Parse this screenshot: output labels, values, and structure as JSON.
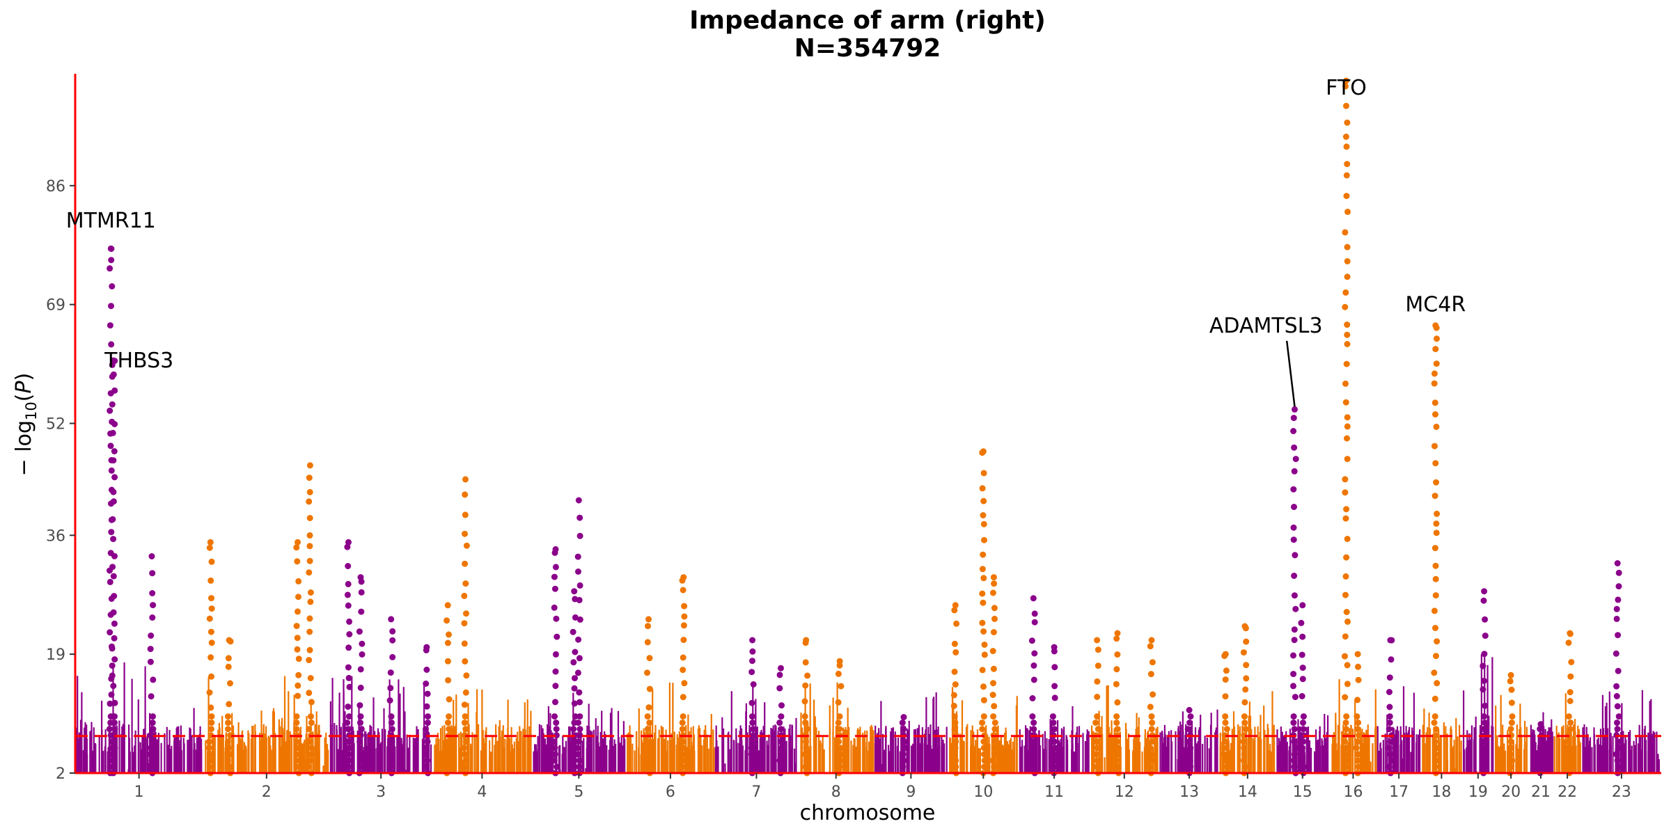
{
  "chart_data": {
    "type": "scatter",
    "subtype": "manhattan",
    "title": "Impedance of arm (right)",
    "subtitle": "N=354792",
    "xlabel": "chromosome",
    "ylabel": "− log10(P)",
    "ylim": [
      2,
      102
    ],
    "yticks": [
      2,
      19,
      36,
      52,
      69,
      86
    ],
    "threshold": 7.3,
    "threshold_color": "#ff0000",
    "axis_color": "#ff0000",
    "colors": [
      "#8b008b",
      "#ee7600"
    ],
    "chromosomes": [
      {
        "label": "1",
        "len": 249,
        "base": 16,
        "peaks": [
          [
            0.3,
            61,
            "top"
          ],
          [
            0.28,
            77,
            "top"
          ],
          [
            0.6,
            33,
            "top"
          ]
        ]
      },
      {
        "label": "2",
        "len": 243,
        "base": 14,
        "peaks": [
          [
            0.05,
            35,
            "top"
          ],
          [
            0.2,
            21,
            "top"
          ],
          [
            0.85,
            46,
            "top"
          ],
          [
            0.75,
            35,
            "top"
          ]
        ]
      },
      {
        "label": "3",
        "len": 198,
        "base": 14,
        "peaks": [
          [
            0.18,
            35,
            "top"
          ],
          [
            0.3,
            30,
            "top"
          ],
          [
            0.6,
            24,
            "top"
          ],
          [
            0.95,
            20,
            "top"
          ]
        ]
      },
      {
        "label": "4",
        "len": 191,
        "base": 12,
        "peaks": [
          [
            0.33,
            44,
            "top"
          ],
          [
            0.15,
            26,
            "top"
          ]
        ]
      },
      {
        "label": "5",
        "len": 181,
        "base": 12,
        "peaks": [
          [
            0.25,
            34,
            "top"
          ],
          [
            0.5,
            41,
            "top"
          ],
          [
            0.45,
            28,
            "top"
          ]
        ]
      },
      {
        "label": "6",
        "len": 171,
        "base": 14,
        "peaks": [
          [
            0.25,
            24,
            "top"
          ],
          [
            0.65,
            30,
            "top"
          ]
        ]
      },
      {
        "label": "7",
        "len": 159,
        "base": 13,
        "peaks": [
          [
            0.45,
            21,
            "top"
          ],
          [
            0.8,
            17,
            "top"
          ]
        ]
      },
      {
        "label": "8",
        "len": 146,
        "base": 13,
        "peaks": [
          [
            0.1,
            21,
            "top"
          ],
          [
            0.55,
            18,
            "top"
          ]
        ]
      },
      {
        "label": "9",
        "len": 141,
        "base": 12,
        "peaks": [
          [
            0.4,
            10,
            "top"
          ]
        ]
      },
      {
        "label": "10",
        "len": 136,
        "base": 13,
        "peaks": [
          [
            0.1,
            26,
            "top"
          ],
          [
            0.5,
            48,
            "top"
          ],
          [
            0.65,
            30,
            "top"
          ]
        ]
      },
      {
        "label": "11",
        "len": 135,
        "base": 14,
        "peaks": [
          [
            0.2,
            27,
            "top"
          ],
          [
            0.5,
            20,
            "top"
          ]
        ]
      },
      {
        "label": "12",
        "len": 133,
        "base": 13,
        "peaks": [
          [
            0.1,
            21,
            "top"
          ],
          [
            0.4,
            22,
            "top"
          ],
          [
            0.9,
            21,
            "top"
          ]
        ]
      },
      {
        "label": "13",
        "len": 115,
        "base": 10,
        "peaks": [
          [
            0.5,
            11,
            "top"
          ]
        ]
      },
      {
        "label": "14",
        "len": 107,
        "base": 12,
        "peaks": [
          [
            0.1,
            19,
            "top"
          ],
          [
            0.45,
            23,
            "top"
          ]
        ]
      },
      {
        "label": "15",
        "len": 102,
        "base": 12,
        "peaks": [
          [
            0.35,
            54,
            "ADAMTSL3"
          ],
          [
            0.5,
            26,
            "top"
          ]
        ]
      },
      {
        "label": "16",
        "len": 90,
        "base": 14,
        "peaks": [
          [
            0.35,
            101,
            "FTO"
          ],
          [
            0.6,
            19,
            "top"
          ]
        ]
      },
      {
        "label": "17",
        "len": 83,
        "base": 14,
        "peaks": [
          [
            0.3,
            21,
            "top"
          ]
        ]
      },
      {
        "label": "18",
        "len": 78,
        "base": 12,
        "peaks": [
          [
            0.35,
            66,
            "MC4R"
          ]
        ]
      },
      {
        "label": "19",
        "len": 59,
        "base": 18,
        "peaks": [
          [
            0.7,
            28,
            "top"
          ]
        ]
      },
      {
        "label": "20",
        "len": 64,
        "base": 14,
        "peaks": [
          [
            0.5,
            16,
            "top"
          ]
        ]
      },
      {
        "label": "21",
        "len": 47,
        "base": 9,
        "peaks": [
          [
            0.5,
            9,
            "top"
          ]
        ]
      },
      {
        "label": "22",
        "len": 51,
        "base": 14,
        "peaks": [
          [
            0.6,
            22,
            "top"
          ]
        ]
      },
      {
        "label": "23",
        "len": 155,
        "base": 12,
        "peaks": [
          [
            0.45,
            32,
            "top"
          ]
        ]
      }
    ],
    "annotations": [
      {
        "gene": "MTMR11",
        "x_chr": "1",
        "x_pos": 0.28,
        "y": 80
      },
      {
        "gene": "THBS3",
        "x_chr": "1",
        "x_pos": 0.5,
        "y": 60
      },
      {
        "gene": "FTO",
        "x_chr": "16",
        "x_pos": 0.35,
        "y": 99
      },
      {
        "gene": "ADAMTSL3",
        "x_chr": "15",
        "x_pos": -0.2,
        "y": 65,
        "arrow_to_y": 54
      },
      {
        "gene": "MC4R",
        "x_chr": "18",
        "x_pos": 0.35,
        "y": 68
      }
    ]
  }
}
